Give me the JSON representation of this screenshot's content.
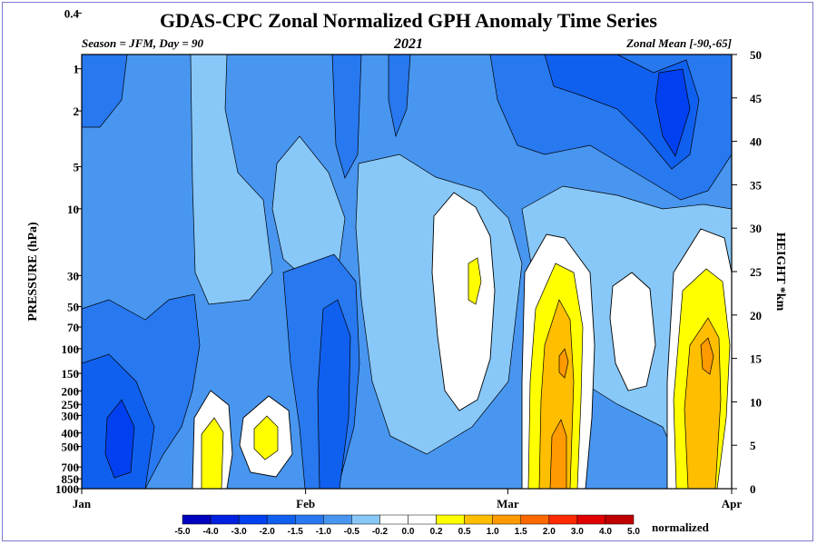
{
  "chart_data": {
    "type": "heatmap",
    "title": "GDAS-CPC Zonal Normalized GPH Anomaly Time Series",
    "subtitle_left": "Season = JFM, Day =  90",
    "subtitle_center": "2021",
    "subtitle_right": "Zonal Mean [-90,-65]",
    "ylabel_left": "PRESSURE (hPa)",
    "ylabel_right": "HEIGHT *km",
    "xlabel": "",
    "x_ticks": [
      "Jan",
      "Feb",
      "Mar",
      "Apr"
    ],
    "pressure_ticks": [
      "0.4",
      "1",
      "2",
      "5",
      "10",
      "30",
      "50",
      "70",
      "100",
      "150",
      "200",
      "250",
      "300",
      "400",
      "500",
      "700",
      "850",
      "1000"
    ],
    "height_ticks": [
      "0",
      "5",
      "10",
      "15",
      "20",
      "25",
      "30",
      "35",
      "40",
      "45",
      "50"
    ],
    "height_range": [
      0,
      50
    ],
    "colorbar": {
      "levels": [
        "-5.0",
        "-4.0",
        "-3.0",
        "-2.0",
        "-1.5",
        "-1.0",
        "-0.5",
        "-0.2",
        "0.0",
        "0.2",
        "0.5",
        "1.0",
        "1.5",
        "2.0",
        "3.0",
        "4.0",
        "5.0"
      ],
      "colors": [
        "#0000c0",
        "#0020e0",
        "#0040f0",
        "#1060f0",
        "#2878f0",
        "#4896f0",
        "#88c8f8",
        "#ffffff",
        "#ffffff",
        "#ffff00",
        "#ffbf00",
        "#ff9a00",
        "#ff6a00",
        "#ff2a00",
        "#e00000",
        "#c00000"
      ],
      "units": "normalized"
    },
    "field_summary": {
      "days": [
        1,
        90
      ],
      "features": [
        {
          "region": "Jan surface to 150 hPa",
          "value_range": [
            -4.0,
            -1.5
          ]
        },
        {
          "region": "early Feb 30-1000 hPa",
          "value_range": [
            -3.0,
            -1.0
          ]
        },
        {
          "region": "late Feb 10-150 hPa",
          "value_range": [
            0.0,
            0.5
          ]
        },
        {
          "region": "early Mar 20-1000 hPa",
          "value_range": [
            0.5,
            1.5
          ]
        },
        {
          "region": "late Mar 15-1000 hPa",
          "value_range": [
            0.5,
            1.5
          ]
        },
        {
          "region": "Mar 0.4-2 hPa",
          "value_range": [
            -3.0,
            -1.5
          ]
        }
      ]
    }
  }
}
